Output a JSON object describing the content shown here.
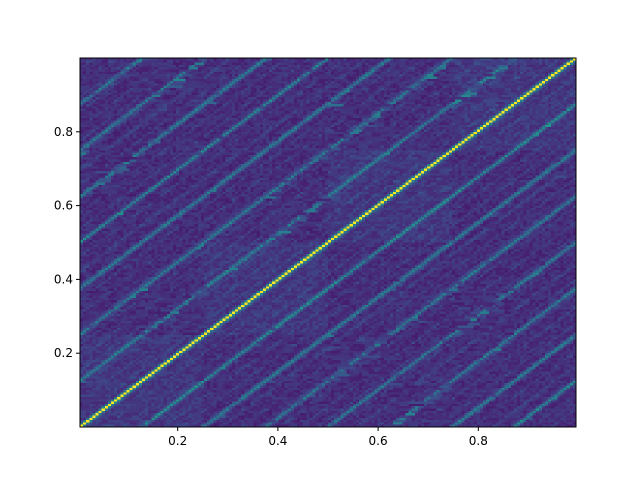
{
  "chart_data": {
    "type": "heatmap",
    "title": "",
    "xlabel": "",
    "ylabel": "",
    "xlim": [
      0.005,
      0.995
    ],
    "ylim": [
      0.0,
      1.0
    ],
    "x_ticks": [
      0.2,
      0.4,
      0.6,
      0.8
    ],
    "y_ticks": [
      0.2,
      0.4,
      0.6,
      0.8
    ],
    "x_tick_labels": [
      "0.2",
      "0.4",
      "0.6",
      "0.8"
    ],
    "y_tick_labels": [
      "0.2",
      "0.4",
      "0.6",
      "0.8"
    ],
    "grid": false,
    "colormap": "viridis",
    "missing_color": "#ffffff",
    "description_of_structure": "",
    "block_boundaries": [
      0.25,
      0.5,
      0.75
    ],
    "main_diagonal": {
      "from": [
        0.0,
        0.0
      ],
      "to": [
        1.0,
        1.0
      ],
      "intensity": "high"
    },
    "secondary_diagonals_offsets": [
      0.125,
      0.25,
      0.375,
      0.5,
      0.625,
      0.75,
      0.875,
      -0.125,
      -0.25,
      -0.375,
      -0.5,
      -0.625,
      -0.75,
      -0.875
    ]
  },
  "colors": {
    "viridis_low": "#440154",
    "viridis_midlow": "#3b528b",
    "viridis_mid": "#21918c",
    "viridis_midhigh": "#5ec962",
    "viridis_high": "#fde725",
    "axis": "#000000",
    "background": "#ffffff"
  }
}
